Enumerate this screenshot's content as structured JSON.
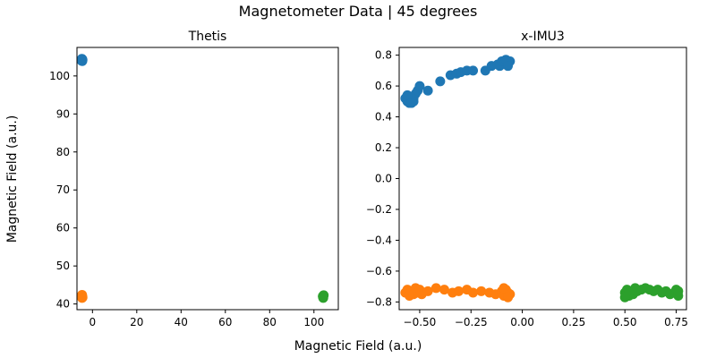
{
  "figure": {
    "suptitle": "Magnetometer Data | 45 degrees",
    "supxlabel": "Magnetic Field (a.u.)",
    "supylabel": "Magnetic Field (a.u.)"
  },
  "chart_data": [
    {
      "type": "scatter",
      "title": "Thetis",
      "xlabel": "",
      "ylabel": "",
      "xlim": [
        -7,
        111
      ],
      "ylim": [
        38.5,
        107.5
      ],
      "xticks": [
        0,
        20,
        40,
        60,
        80,
        100
      ],
      "yticks": [
        40,
        50,
        60,
        70,
        80,
        90,
        100
      ],
      "grid": false,
      "series": [
        {
          "color": "#1f77b4",
          "points": [
            [
              -4.8,
              104.1
            ],
            [
              -4.6,
              104.4
            ],
            [
              -4.9,
              104.0
            ],
            [
              -4.7,
              104.3
            ],
            [
              -4.5,
              104.2
            ],
            [
              -4.8,
              104.5
            ],
            [
              -4.6,
              103.9
            ]
          ]
        },
        {
          "color": "#ff7f0e",
          "points": [
            [
              -4.6,
              41.9
            ],
            [
              -4.8,
              42.2
            ],
            [
              -4.5,
              41.7
            ],
            [
              -4.7,
              42.4
            ],
            [
              -4.9,
              41.8
            ],
            [
              -4.6,
              42.0
            ],
            [
              -4.7,
              41.6
            ]
          ]
        },
        {
          "color": "#2ca02c",
          "points": [
            [
              104.1,
              41.8
            ],
            [
              104.3,
              42.2
            ],
            [
              104.0,
              42.0
            ],
            [
              104.2,
              41.6
            ],
            [
              104.4,
              42.3
            ],
            [
              104.1,
              42.1
            ]
          ]
        }
      ]
    },
    {
      "type": "scatter",
      "title": "x-IMU3",
      "xlabel": "",
      "ylabel": "",
      "xlim": [
        -0.6,
        0.8
      ],
      "ylim": [
        -0.85,
        0.85
      ],
      "xticks": [
        -0.5,
        -0.25,
        0.0,
        0.25,
        0.5,
        0.75
      ],
      "xtick_labels": [
        "−0.50",
        "−0.25",
        "0.00",
        "0.25",
        "0.50",
        "0.75"
      ],
      "yticks": [
        -0.8,
        -0.6,
        -0.4,
        -0.2,
        0.0,
        0.2,
        0.4,
        0.6,
        0.8
      ],
      "ytick_labels": [
        "−0.8",
        "−0.6",
        "−0.4",
        "−0.2",
        "0.0",
        "0.2",
        "0.4",
        "0.6",
        "0.8"
      ],
      "grid": false,
      "series": [
        {
          "color": "#1f77b4",
          "points": [
            [
              -0.57,
              0.52
            ],
            [
              -0.56,
              0.5
            ],
            [
              -0.55,
              0.49
            ],
            [
              -0.54,
              0.51
            ],
            [
              -0.55,
              0.53
            ],
            [
              -0.53,
              0.52
            ],
            [
              -0.52,
              0.55
            ],
            [
              -0.51,
              0.57
            ],
            [
              -0.5,
              0.6
            ],
            [
              -0.53,
              0.5
            ],
            [
              -0.56,
              0.54
            ],
            [
              -0.54,
              0.49
            ],
            [
              -0.46,
              0.57
            ],
            [
              -0.4,
              0.63
            ],
            [
              -0.35,
              0.67
            ],
            [
              -0.32,
              0.68
            ],
            [
              -0.3,
              0.69
            ],
            [
              -0.27,
              0.7
            ],
            [
              -0.24,
              0.7
            ],
            [
              -0.18,
              0.7
            ],
            [
              -0.15,
              0.73
            ],
            [
              -0.12,
              0.74
            ],
            [
              -0.1,
              0.75
            ],
            [
              -0.09,
              0.76
            ],
            [
              -0.08,
              0.74
            ],
            [
              -0.07,
              0.75
            ],
            [
              -0.06,
              0.76
            ],
            [
              -0.11,
              0.73
            ],
            [
              -0.1,
              0.76
            ],
            [
              -0.08,
              0.77
            ],
            [
              -0.07,
              0.73
            ]
          ]
        },
        {
          "color": "#ff7f0e",
          "points": [
            [
              -0.57,
              -0.74
            ],
            [
              -0.56,
              -0.72
            ],
            [
              -0.55,
              -0.76
            ],
            [
              -0.54,
              -0.73
            ],
            [
              -0.53,
              -0.75
            ],
            [
              -0.52,
              -0.71
            ],
            [
              -0.51,
              -0.74
            ],
            [
              -0.5,
              -0.72
            ],
            [
              -0.49,
              -0.75
            ],
            [
              -0.46,
              -0.73
            ],
            [
              -0.42,
              -0.71
            ],
            [
              -0.38,
              -0.72
            ],
            [
              -0.34,
              -0.74
            ],
            [
              -0.31,
              -0.73
            ],
            [
              -0.27,
              -0.72
            ],
            [
              -0.24,
              -0.74
            ],
            [
              -0.2,
              -0.73
            ],
            [
              -0.16,
              -0.74
            ],
            [
              -0.13,
              -0.75
            ],
            [
              -0.1,
              -0.73
            ],
            [
              -0.09,
              -0.76
            ],
            [
              -0.08,
              -0.72
            ],
            [
              -0.07,
              -0.74
            ],
            [
              -0.06,
              -0.75
            ],
            [
              -0.09,
              -0.71
            ],
            [
              -0.07,
              -0.77
            ]
          ]
        },
        {
          "color": "#2ca02c",
          "points": [
            [
              0.5,
              -0.74
            ],
            [
              0.51,
              -0.72
            ],
            [
              0.52,
              -0.76
            ],
            [
              0.53,
              -0.73
            ],
            [
              0.54,
              -0.75
            ],
            [
              0.55,
              -0.71
            ],
            [
              0.56,
              -0.73
            ],
            [
              0.58,
              -0.72
            ],
            [
              0.6,
              -0.71
            ],
            [
              0.62,
              -0.72
            ],
            [
              0.64,
              -0.73
            ],
            [
              0.66,
              -0.72
            ],
            [
              0.68,
              -0.74
            ],
            [
              0.7,
              -0.73
            ],
            [
              0.72,
              -0.75
            ],
            [
              0.74,
              -0.74
            ],
            [
              0.75,
              -0.72
            ],
            [
              0.76,
              -0.76
            ],
            [
              0.76,
              -0.73
            ],
            [
              0.52,
              -0.74
            ],
            [
              0.5,
              -0.77
            ]
          ]
        }
      ]
    }
  ]
}
